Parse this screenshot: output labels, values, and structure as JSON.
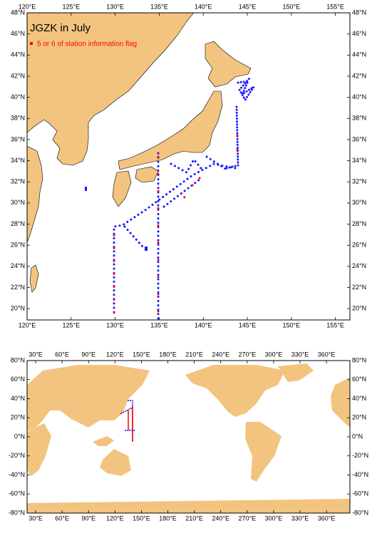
{
  "top_map": {
    "title": "JGZK in July",
    "legend": "5 or 6 of station information flag",
    "lon_labels": [
      "120°E",
      "125°E",
      "130°E",
      "135°E",
      "140°E",
      "145°E",
      "150°E",
      "155°E"
    ],
    "lat_labels": [
      "48°N",
      "46°N",
      "44°N",
      "42°N",
      "40°N",
      "38°N",
      "36°N",
      "34°N",
      "32°N",
      "30°N",
      "28°N",
      "26°N",
      "24°N",
      "22°N",
      "20°N"
    ]
  },
  "bottom_map": {
    "lon_labels": [
      "30°E",
      "60°E",
      "90°E",
      "120°E",
      "150°E",
      "180°E",
      "210°E",
      "240°E",
      "270°E",
      "300°E",
      "330°E",
      "360°E"
    ],
    "lat_labels": [
      "80°N",
      "60°N",
      "40°N",
      "20°N",
      "0°N",
      "-20°N",
      "-40°N",
      "-60°N",
      "-80°N"
    ]
  }
}
